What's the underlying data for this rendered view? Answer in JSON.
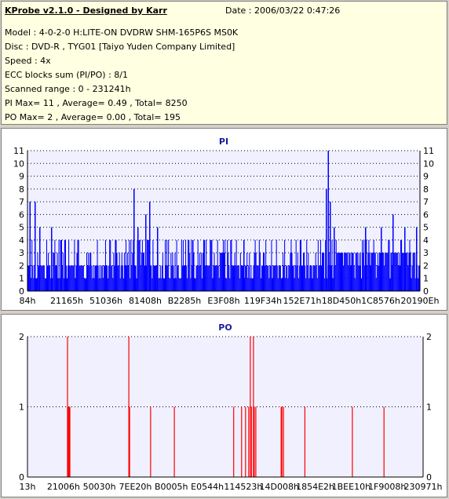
{
  "info": {
    "title": "KProbe v2.1.0 - Designed by Karr",
    "date": "Date : 2006/03/22 0:47:26",
    "lines": [
      "Model : 4-0-2-0 H:LITE-ON DVDRW SHM-165P6S MS0K",
      "Disc : DVD-R , TYG01 [Taiyo Yuden Company Limited]",
      "Speed : 4x",
      "ECC blocks sum (PI/PO) : 8/1",
      "Scanned range : 0 - 231241h",
      "PI Max= 11 , Average= 0.49 , Total= 8250",
      "PO Max= 2 , Average= 0.00 , Total= 195"
    ]
  },
  "chart_data": [
    {
      "type": "bar",
      "title": "PI",
      "color": "#0000ff",
      "ylim": [
        0,
        11
      ],
      "yticks": [
        0,
        1,
        2,
        3,
        4,
        5,
        6,
        7,
        8,
        9,
        10,
        11
      ],
      "xticklabels": [
        "84h",
        "21165h",
        "51036h",
        "81408h",
        "B2285h",
        "E3F08h",
        "119F34h",
        "152E71h",
        "18D450h",
        "1C8576h",
        "20190Eh"
      ],
      "grid": true,
      "sample_bins": 480,
      "spikes": [
        {
          "pos": 0.005,
          "value": 7
        },
        {
          "pos": 0.018,
          "value": 7
        },
        {
          "pos": 0.03,
          "value": 5
        },
        {
          "pos": 0.06,
          "value": 5
        },
        {
          "pos": 0.085,
          "value": 4
        },
        {
          "pos": 0.095,
          "value": 4
        },
        {
          "pos": 0.27,
          "value": 8
        },
        {
          "pos": 0.28,
          "value": 5
        },
        {
          "pos": 0.31,
          "value": 7
        },
        {
          "pos": 0.3,
          "value": 6
        },
        {
          "pos": 0.33,
          "value": 5
        },
        {
          "pos": 0.42,
          "value": 4
        },
        {
          "pos": 0.55,
          "value": 4
        },
        {
          "pos": 0.6,
          "value": 3
        },
        {
          "pos": 0.765,
          "value": 11
        },
        {
          "pos": 0.76,
          "value": 8
        },
        {
          "pos": 0.77,
          "value": 7
        },
        {
          "pos": 0.78,
          "value": 5
        },
        {
          "pos": 0.86,
          "value": 5
        },
        {
          "pos": 0.9,
          "value": 5
        },
        {
          "pos": 0.93,
          "value": 6
        },
        {
          "pos": 0.96,
          "value": 5
        },
        {
          "pos": 0.99,
          "value": 5
        }
      ]
    },
    {
      "type": "bar",
      "title": "PO",
      "color": "#ff0000",
      "ylim": [
        0,
        2
      ],
      "yticks": [
        0,
        1,
        2
      ],
      "xticklabels": [
        "13h",
        "21006h",
        "50030h",
        "7EE20h",
        "B0005h",
        "E0544h",
        "114523h",
        "14D008h",
        "1854E2h",
        "1BEE10h",
        "1F9008h",
        "230971h"
      ],
      "grid": true,
      "values": [
        {
          "pos": 0.1,
          "value": 2
        },
        {
          "pos": 0.102,
          "value": 1
        },
        {
          "pos": 0.104,
          "value": 1
        },
        {
          "pos": 0.106,
          "value": 1
        },
        {
          "pos": 0.255,
          "value": 2
        },
        {
          "pos": 0.257,
          "value": 1
        },
        {
          "pos": 0.31,
          "value": 1
        },
        {
          "pos": 0.37,
          "value": 1
        },
        {
          "pos": 0.52,
          "value": 1
        },
        {
          "pos": 0.54,
          "value": 1
        },
        {
          "pos": 0.55,
          "value": 1
        },
        {
          "pos": 0.558,
          "value": 1
        },
        {
          "pos": 0.562,
          "value": 2
        },
        {
          "pos": 0.565,
          "value": 1
        },
        {
          "pos": 0.57,
          "value": 2
        },
        {
          "pos": 0.572,
          "value": 1
        },
        {
          "pos": 0.576,
          "value": 1
        },
        {
          "pos": 0.64,
          "value": 1
        },
        {
          "pos": 0.642,
          "value": 1
        },
        {
          "pos": 0.646,
          "value": 1
        },
        {
          "pos": 0.7,
          "value": 1
        },
        {
          "pos": 0.82,
          "value": 1
        },
        {
          "pos": 0.9,
          "value": 1
        }
      ]
    }
  ]
}
